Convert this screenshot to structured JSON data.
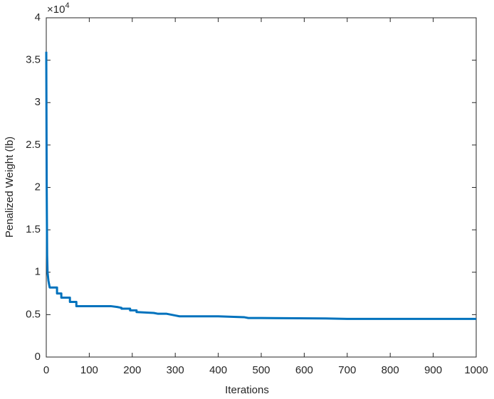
{
  "chart_data": {
    "type": "line",
    "x_label": "Iterations",
    "y_label": "Penalized Weight (lb)",
    "y_multiplier": {
      "base": "×10",
      "exponent": "4"
    },
    "x": [
      0,
      1,
      2,
      3,
      5,
      8,
      25,
      25,
      35,
      35,
      55,
      55,
      70,
      70,
      150,
      165,
      175,
      175,
      195,
      195,
      210,
      210,
      250,
      260,
      280,
      300,
      310,
      400,
      460,
      470,
      500,
      650,
      700,
      1000
    ],
    "series": [
      {
        "color": "#0072bd",
        "values": [
          3.6,
          2.0,
          1.2,
          1.0,
          0.9,
          0.82,
          0.82,
          0.75,
          0.75,
          0.7,
          0.7,
          0.65,
          0.65,
          0.6,
          0.6,
          0.59,
          0.58,
          0.57,
          0.57,
          0.55,
          0.55,
          0.53,
          0.52,
          0.51,
          0.51,
          0.49,
          0.48,
          0.48,
          0.47,
          0.46,
          0.46,
          0.455,
          0.45,
          0.45
        ]
      }
    ],
    "xlim": [
      0,
      1000
    ],
    "xticks": [
      0,
      100,
      200,
      300,
      400,
      500,
      600,
      700,
      800,
      900,
      1000
    ],
    "ylim": [
      0,
      4
    ],
    "yticks": [
      0,
      0.5,
      1,
      1.5,
      2,
      2.5,
      3,
      3.5,
      4
    ],
    "grid": false
  }
}
